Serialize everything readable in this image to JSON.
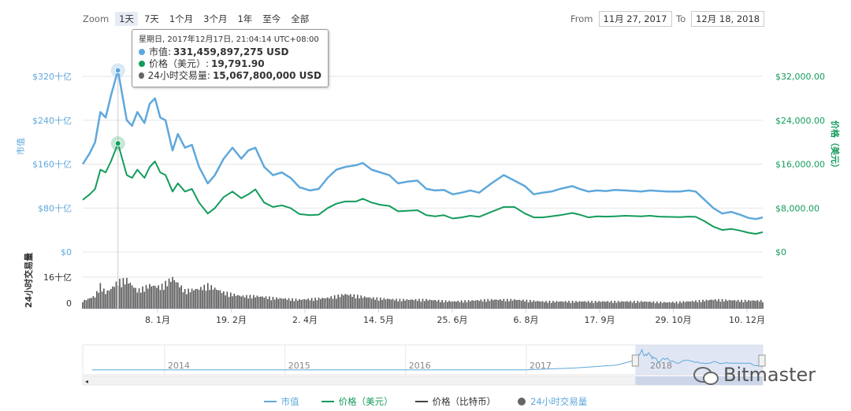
{
  "zoom": {
    "label": "Zoom",
    "buttons": [
      "1天",
      "7天",
      "1个月",
      "3个月",
      "1年",
      "至今",
      "全部"
    ],
    "active": "1天"
  },
  "range": {
    "from_label": "From",
    "from_value": "11月 27, 2017",
    "to_label": "To",
    "to_value": "12月 18, 2018"
  },
  "tooltip": {
    "date": "星期日, 2017年12月17日, 21:04:14 UTC+08:00",
    "rows": [
      {
        "label": "市值:",
        "value": "331,459,897,275 USD",
        "color": "#5fa8dc"
      },
      {
        "label": "价格（美元）:",
        "value": "19,791.90",
        "color": "#139c5c"
      },
      {
        "label": "24小时交易量:",
        "value": "15,067,800,000 USD",
        "color": "#666666"
      }
    ]
  },
  "watermark": "Bitmaster",
  "chart_data": {
    "type": "line",
    "x_range": [
      "2017-11-27",
      "2018-12-18"
    ],
    "x_ticks": [
      "8. 1月",
      "19. 2月",
      "2. 4月",
      "14. 5月",
      "25. 6月",
      "6. 8月",
      "17. 9月",
      "29. 10月",
      "10. 12月"
    ],
    "left_axis": {
      "label": "市值",
      "ticks": [
        "$0",
        "$80十亿",
        "$160十亿",
        "$240十亿",
        "$320十亿"
      ],
      "range": [
        0,
        320
      ],
      "unit": "十亿 USD"
    },
    "right_axis": {
      "label": "价格（美元）",
      "ticks": [
        "$0",
        "$8,000.00",
        "$16,000.00",
        "$24,000.00",
        "$32,000.00"
      ],
      "range": [
        0,
        32000
      ]
    },
    "volume_axis": {
      "label": "24小时交易量",
      "ticks": [
        "0",
        "16十亿"
      ],
      "range": [
        0,
        16
      ]
    },
    "grid": true,
    "colors": {
      "market_cap": "#5fa8dc",
      "price": "#139c5c",
      "volume": "#555555",
      "btc_price": "#444444"
    },
    "series": [
      {
        "name": "市值",
        "axis": "left",
        "points": [
          [
            "2017-11-27",
            160
          ],
          [
            "2017-12-01",
            180
          ],
          [
            "2017-12-04",
            200
          ],
          [
            "2017-12-07",
            255
          ],
          [
            "2017-12-10",
            245
          ],
          [
            "2017-12-13",
            285
          ],
          [
            "2017-12-17",
            331
          ],
          [
            "2017-12-22",
            240
          ],
          [
            "2017-12-25",
            230
          ],
          [
            "2017-12-28",
            255
          ],
          [
            "2018-01-01",
            235
          ],
          [
            "2018-01-04",
            270
          ],
          [
            "2018-01-07",
            280
          ],
          [
            "2018-01-10",
            245
          ],
          [
            "2018-01-13",
            240
          ],
          [
            "2018-01-17",
            185
          ],
          [
            "2018-01-20",
            215
          ],
          [
            "2018-01-24",
            190
          ],
          [
            "2018-01-28",
            195
          ],
          [
            "2018-02-01",
            155
          ],
          [
            "2018-02-06",
            125
          ],
          [
            "2018-02-10",
            140
          ],
          [
            "2018-02-15",
            170
          ],
          [
            "2018-02-20",
            190
          ],
          [
            "2018-02-25",
            170
          ],
          [
            "2018-03-01",
            185
          ],
          [
            "2018-03-05",
            190
          ],
          [
            "2018-03-10",
            155
          ],
          [
            "2018-03-15",
            140
          ],
          [
            "2018-03-20",
            145
          ],
          [
            "2018-03-25",
            135
          ],
          [
            "2018-03-30",
            118
          ],
          [
            "2018-04-05",
            112
          ],
          [
            "2018-04-10",
            115
          ],
          [
            "2018-04-15",
            135
          ],
          [
            "2018-04-20",
            150
          ],
          [
            "2018-04-25",
            155
          ],
          [
            "2018-05-01",
            158
          ],
          [
            "2018-05-05",
            162
          ],
          [
            "2018-05-10",
            150
          ],
          [
            "2018-05-15",
            145
          ],
          [
            "2018-05-20",
            140
          ],
          [
            "2018-05-25",
            125
          ],
          [
            "2018-05-30",
            128
          ],
          [
            "2018-06-05",
            130
          ],
          [
            "2018-06-10",
            115
          ],
          [
            "2018-06-15",
            112
          ],
          [
            "2018-06-20",
            113
          ],
          [
            "2018-06-25",
            105
          ],
          [
            "2018-06-30",
            108
          ],
          [
            "2018-07-05",
            112
          ],
          [
            "2018-07-10",
            108
          ],
          [
            "2018-07-17",
            125
          ],
          [
            "2018-07-24",
            140
          ],
          [
            "2018-07-30",
            130
          ],
          [
            "2018-08-05",
            120
          ],
          [
            "2018-08-10",
            105
          ],
          [
            "2018-08-15",
            108
          ],
          [
            "2018-08-20",
            110
          ],
          [
            "2018-08-25",
            115
          ],
          [
            "2018-09-01",
            120
          ],
          [
            "2018-09-05",
            115
          ],
          [
            "2018-09-10",
            110
          ],
          [
            "2018-09-15",
            112
          ],
          [
            "2018-09-20",
            111
          ],
          [
            "2018-09-25",
            113
          ],
          [
            "2018-10-01",
            112
          ],
          [
            "2018-10-10",
            110
          ],
          [
            "2018-10-15",
            112
          ],
          [
            "2018-10-20",
            111
          ],
          [
            "2018-10-25",
            110
          ],
          [
            "2018-11-01",
            110
          ],
          [
            "2018-11-06",
            112
          ],
          [
            "2018-11-10",
            110
          ],
          [
            "2018-11-15",
            95
          ],
          [
            "2018-11-20",
            80
          ],
          [
            "2018-11-25",
            70
          ],
          [
            "2018-11-30",
            73
          ],
          [
            "2018-12-05",
            68
          ],
          [
            "2018-12-10",
            62
          ],
          [
            "2018-12-14",
            60
          ],
          [
            "2018-12-18",
            63
          ]
        ]
      },
      {
        "name": "价格（美元）",
        "axis": "right",
        "points": [
          [
            "2017-11-27",
            9500
          ],
          [
            "2017-12-01",
            10500
          ],
          [
            "2017-12-04",
            11500
          ],
          [
            "2017-12-07",
            15000
          ],
          [
            "2017-12-10",
            14500
          ],
          [
            "2017-12-13",
            16500
          ],
          [
            "2017-12-17",
            19791.9
          ],
          [
            "2017-12-22",
            14000
          ],
          [
            "2017-12-25",
            13500
          ],
          [
            "2017-12-28",
            15000
          ],
          [
            "2018-01-01",
            13500
          ],
          [
            "2018-01-04",
            15500
          ],
          [
            "2018-01-07",
            16500
          ],
          [
            "2018-01-10",
            14500
          ],
          [
            "2018-01-13",
            14000
          ],
          [
            "2018-01-17",
            11000
          ],
          [
            "2018-01-20",
            12500
          ],
          [
            "2018-01-24",
            11000
          ],
          [
            "2018-01-28",
            11500
          ],
          [
            "2018-02-01",
            9000
          ],
          [
            "2018-02-06",
            7000
          ],
          [
            "2018-02-10",
            8000
          ],
          [
            "2018-02-15",
            10000
          ],
          [
            "2018-02-20",
            11000
          ],
          [
            "2018-02-25",
            9800
          ],
          [
            "2018-03-01",
            10500
          ],
          [
            "2018-03-05",
            11400
          ],
          [
            "2018-03-10",
            9000
          ],
          [
            "2018-03-15",
            8200
          ],
          [
            "2018-03-20",
            8500
          ],
          [
            "2018-03-25",
            8000
          ],
          [
            "2018-03-30",
            6900
          ],
          [
            "2018-04-05",
            6700
          ],
          [
            "2018-04-10",
            6800
          ],
          [
            "2018-04-15",
            8000
          ],
          [
            "2018-04-20",
            8800
          ],
          [
            "2018-04-25",
            9200
          ],
          [
            "2018-05-01",
            9200
          ],
          [
            "2018-05-05",
            9700
          ],
          [
            "2018-05-10",
            9000
          ],
          [
            "2018-05-15",
            8600
          ],
          [
            "2018-05-20",
            8400
          ],
          [
            "2018-05-25",
            7400
          ],
          [
            "2018-05-30",
            7500
          ],
          [
            "2018-06-05",
            7600
          ],
          [
            "2018-06-10",
            6700
          ],
          [
            "2018-06-15",
            6500
          ],
          [
            "2018-06-20",
            6700
          ],
          [
            "2018-06-25",
            6100
          ],
          [
            "2018-06-30",
            6300
          ],
          [
            "2018-07-05",
            6600
          ],
          [
            "2018-07-10",
            6400
          ],
          [
            "2018-07-17",
            7300
          ],
          [
            "2018-07-24",
            8200
          ],
          [
            "2018-07-30",
            8200
          ],
          [
            "2018-08-05",
            7000
          ],
          [
            "2018-08-10",
            6300
          ],
          [
            "2018-08-15",
            6300
          ],
          [
            "2018-08-20",
            6500
          ],
          [
            "2018-08-25",
            6700
          ],
          [
            "2018-09-01",
            7100
          ],
          [
            "2018-09-05",
            6800
          ],
          [
            "2018-09-10",
            6300
          ],
          [
            "2018-09-15",
            6500
          ],
          [
            "2018-09-20",
            6450
          ],
          [
            "2018-09-25",
            6500
          ],
          [
            "2018-10-01",
            6600
          ],
          [
            "2018-10-10",
            6500
          ],
          [
            "2018-10-15",
            6600
          ],
          [
            "2018-10-20",
            6450
          ],
          [
            "2018-10-25",
            6400
          ],
          [
            "2018-11-01",
            6350
          ],
          [
            "2018-11-06",
            6450
          ],
          [
            "2018-11-10",
            6400
          ],
          [
            "2018-11-15",
            5600
          ],
          [
            "2018-11-20",
            4600
          ],
          [
            "2018-11-25",
            4000
          ],
          [
            "2018-11-30",
            4200
          ],
          [
            "2018-12-05",
            3900
          ],
          [
            "2018-12-10",
            3500
          ],
          [
            "2018-12-14",
            3300
          ],
          [
            "2018-12-18",
            3600
          ]
        ]
      },
      {
        "name": "24小时交易量",
        "axis": "volume",
        "points": [
          [
            "2017-11-27",
            4.2
          ],
          [
            "2017-12-04",
            7
          ],
          [
            "2017-12-07",
            13
          ],
          [
            "2017-12-10",
            9
          ],
          [
            "2017-12-13",
            11
          ],
          [
            "2017-12-17",
            15.07
          ],
          [
            "2017-12-22",
            16
          ],
          [
            "2017-12-28",
            10
          ],
          [
            "2018-01-04",
            13
          ],
          [
            "2018-01-10",
            12
          ],
          [
            "2018-01-17",
            17
          ],
          [
            "2018-01-24",
            10
          ],
          [
            "2018-02-01",
            11
          ],
          [
            "2018-02-06",
            13
          ],
          [
            "2018-02-15",
            9
          ],
          [
            "2018-02-25",
            7
          ],
          [
            "2018-03-05",
            7
          ],
          [
            "2018-03-15",
            6
          ],
          [
            "2018-03-30",
            5
          ],
          [
            "2018-04-15",
            6
          ],
          [
            "2018-04-25",
            8
          ],
          [
            "2018-05-10",
            6
          ],
          [
            "2018-05-25",
            5
          ],
          [
            "2018-06-10",
            5
          ],
          [
            "2018-06-25",
            4
          ],
          [
            "2018-07-17",
            5
          ],
          [
            "2018-07-30",
            5
          ],
          [
            "2018-08-15",
            4
          ],
          [
            "2018-09-01",
            4
          ],
          [
            "2018-09-20",
            4
          ],
          [
            "2018-10-10",
            4
          ],
          [
            "2018-10-25",
            3.5
          ],
          [
            "2018-11-06",
            4
          ],
          [
            "2018-11-20",
            5
          ],
          [
            "2018-12-05",
            4.5
          ],
          [
            "2018-12-18",
            4.5
          ]
        ]
      }
    ],
    "navigator": {
      "years": [
        "2014",
        "2015",
        "2016",
        "2017",
        "2018"
      ],
      "range": [
        "2013-04-28",
        "2018-12-18"
      ],
      "selected": [
        "2017-11-27",
        "2018-12-18"
      ]
    },
    "legend": {
      "placement": "bottom-center",
      "items": [
        {
          "label": "市值",
          "symbol": "line",
          "color": "#5fa8dc"
        },
        {
          "label": "价格（美元）",
          "symbol": "line",
          "color": "#139c5c"
        },
        {
          "label": "价格（比特币）",
          "symbol": "line",
          "color": "#444444"
        },
        {
          "label": "24小时交易量",
          "symbol": "circle",
          "color": "#666666"
        }
      ]
    }
  }
}
